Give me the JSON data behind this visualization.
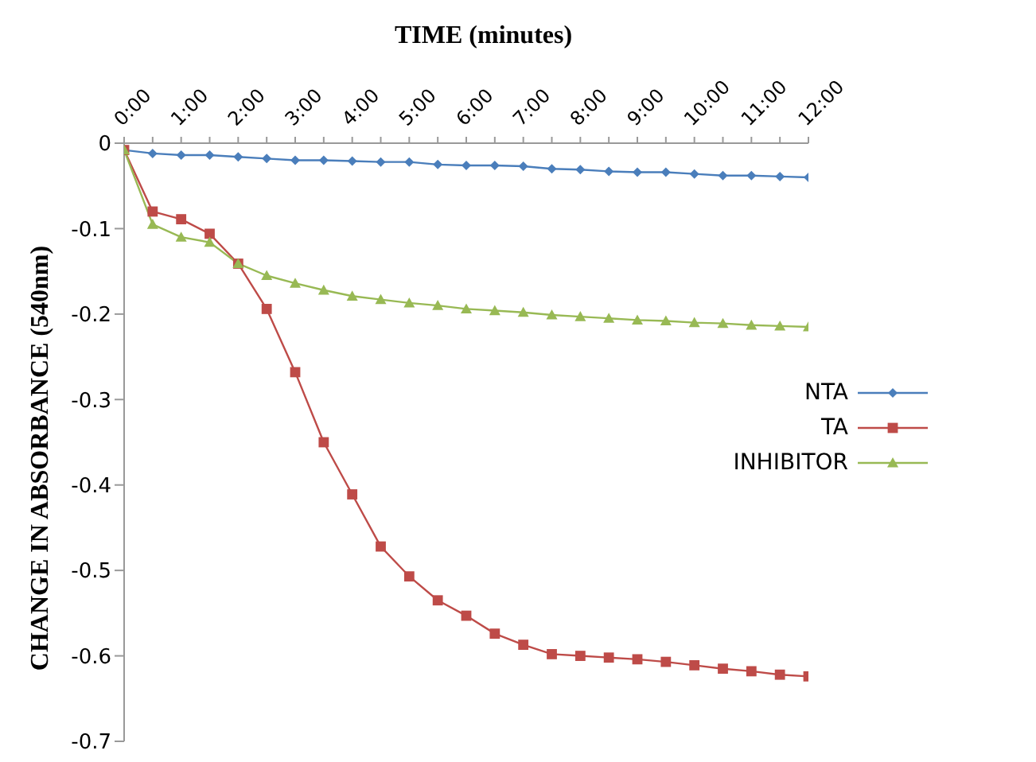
{
  "chart_data": {
    "type": "line",
    "xlabel": "TIME (minutes)",
    "ylabel": "CHANGE IN ABSORBANCE  (540nm)",
    "categories": [
      "0:00",
      null,
      "1:00",
      null,
      "2:00",
      null,
      "3:00",
      null,
      "4:00",
      null,
      "5:00",
      null,
      "6:00",
      null,
      "7:00",
      null,
      "8:00",
      null,
      "9:00",
      null,
      "10:00",
      null,
      "11:00",
      null,
      "12:00"
    ],
    "series": [
      {
        "name": "NTA",
        "color": "#4a7ebb",
        "marker": "diamond",
        "values": [
          -0.008,
          -0.012,
          -0.014,
          -0.014,
          -0.016,
          -0.018,
          -0.02,
          -0.02,
          -0.021,
          -0.022,
          -0.022,
          -0.025,
          -0.026,
          -0.026,
          -0.027,
          -0.03,
          -0.031,
          -0.033,
          -0.034,
          -0.034,
          -0.036,
          -0.038,
          -0.038,
          -0.039,
          -0.04
        ]
      },
      {
        "name": "TA",
        "color": "#be4b48",
        "marker": "square",
        "values": [
          -0.008,
          -0.08,
          -0.089,
          -0.106,
          -0.141,
          -0.194,
          -0.268,
          -0.35,
          -0.411,
          -0.472,
          -0.507,
          -0.535,
          -0.553,
          -0.574,
          -0.587,
          -0.598,
          -0.6,
          -0.602,
          -0.604,
          -0.607,
          -0.611,
          -0.615,
          -0.618,
          -0.622,
          -0.624
        ]
      },
      {
        "name": "INHIBITOR",
        "color": "#98b954",
        "marker": "triangle",
        "values": [
          -0.008,
          -0.095,
          -0.11,
          -0.116,
          -0.141,
          -0.155,
          -0.164,
          -0.172,
          -0.179,
          -0.183,
          -0.187,
          -0.19,
          -0.194,
          -0.196,
          -0.198,
          -0.201,
          -0.203,
          -0.205,
          -0.207,
          -0.208,
          -0.21,
          -0.211,
          -0.213,
          -0.214,
          -0.215
        ]
      }
    ],
    "ylim": [
      -0.7,
      0
    ],
    "yticks": [
      -0.7,
      -0.6,
      -0.5,
      -0.4,
      -0.3,
      -0.2,
      -0.1,
      0
    ],
    "grid": false,
    "legend": "right"
  }
}
